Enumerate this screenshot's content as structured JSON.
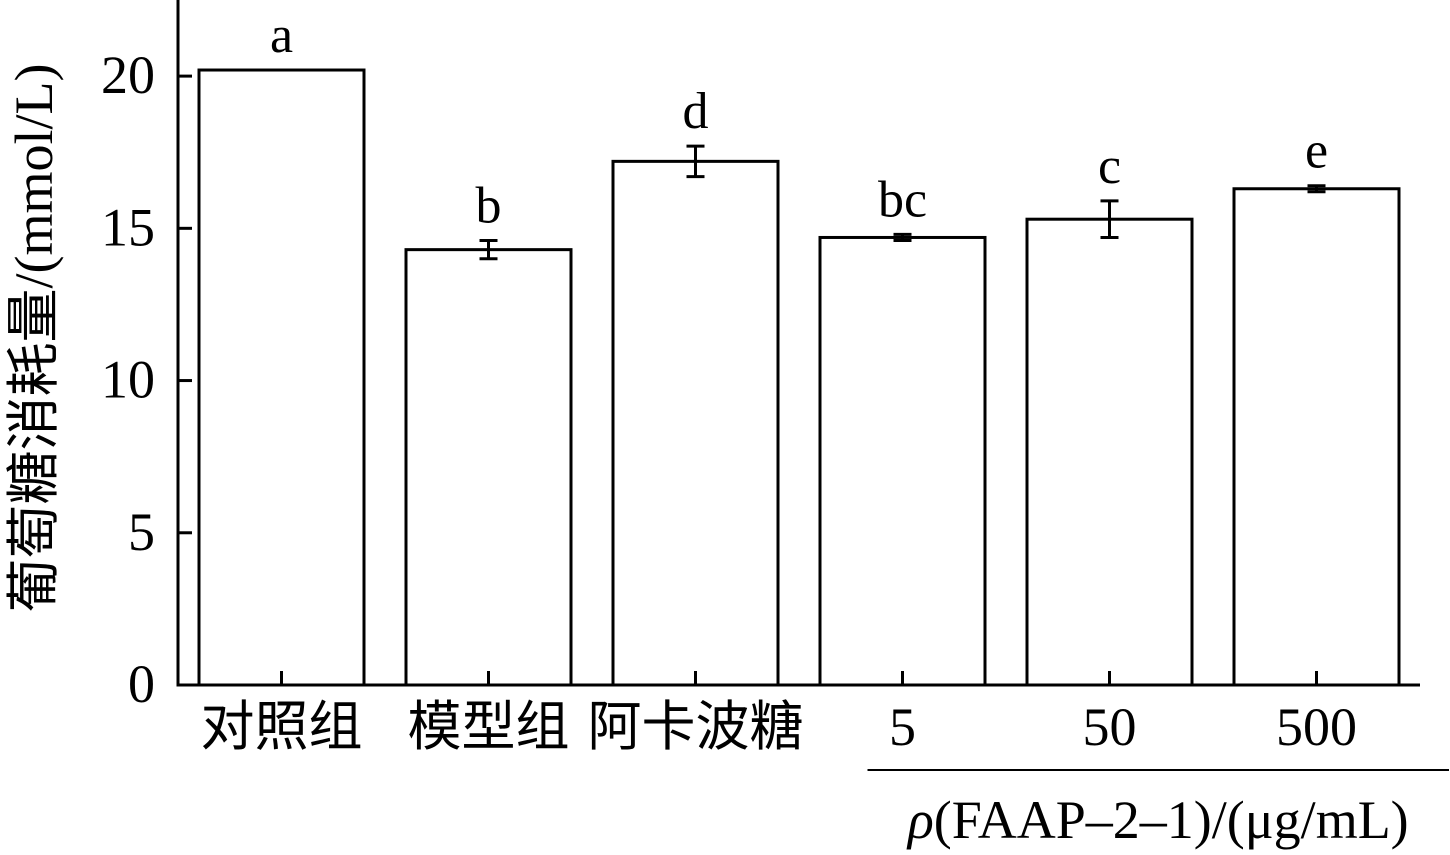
{
  "chart_data": {
    "type": "bar",
    "categories": [
      "对照组",
      "模型组",
      "阿卡波糖",
      "5",
      "50",
      "500"
    ],
    "values": [
      20.2,
      14.3,
      17.2,
      14.7,
      15.3,
      16.3
    ],
    "errors": [
      0,
      0.3,
      0.5,
      0.1,
      0.6,
      0.1
    ],
    "significance": [
      "a",
      "b",
      "d",
      "bc",
      "c",
      "e"
    ],
    "ylabel": "葡萄糖消耗量/(mmol/L)",
    "ylim": [
      0,
      22.5
    ],
    "yticks": [
      0,
      5,
      10,
      15,
      20
    ],
    "group_label": {
      "symbol": "ρ",
      "text": "(FAAP–2–1)/(μg/mL)"
    },
    "grid": false,
    "colors": {
      "bar_fill": "#ffffff",
      "bar_stroke": "#000000",
      "axis": "#000000"
    }
  }
}
